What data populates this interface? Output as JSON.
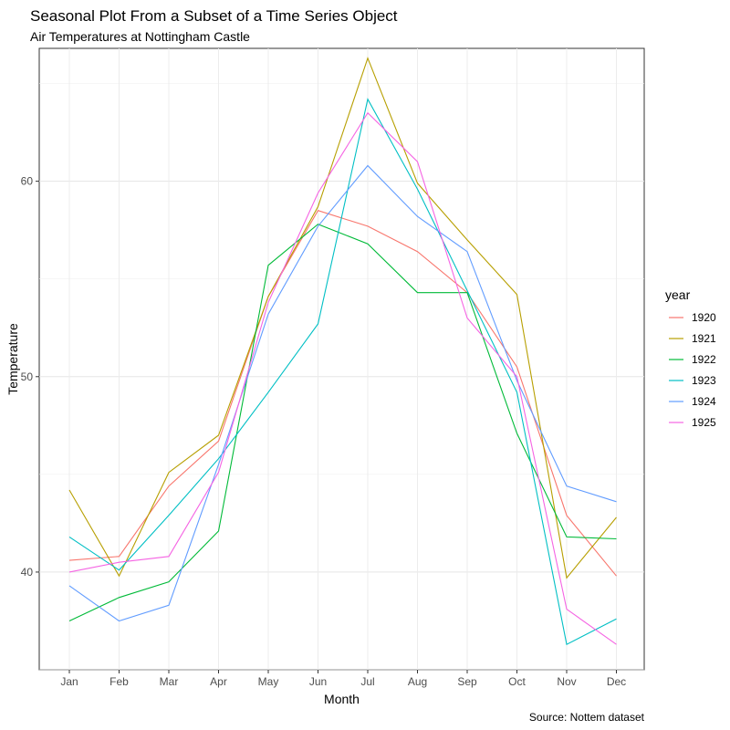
{
  "chart_data": {
    "type": "line",
    "title": "Seasonal Plot From a Subset of a Time Series Object",
    "subtitle": "Air Temperatures at Nottingham Castle",
    "xlabel": "Month",
    "ylabel": "Temperature",
    "caption": "Source: Nottem dataset",
    "categories": [
      "Jan",
      "Feb",
      "Mar",
      "Apr",
      "May",
      "Jun",
      "Jul",
      "Aug",
      "Sep",
      "Oct",
      "Nov",
      "Dec"
    ],
    "ylim": [
      35,
      66.8
    ],
    "yticks": [
      40,
      50,
      60
    ],
    "grid": true,
    "legend": {
      "title": "year",
      "position": "right"
    },
    "series": [
      {
        "name": "1920",
        "color": "#F8766D",
        "values": [
          40.6,
          40.8,
          44.4,
          46.7,
          54.1,
          58.5,
          57.7,
          56.4,
          54.3,
          50.5,
          42.9,
          39.8
        ]
      },
      {
        "name": "1921",
        "color": "#B79F00",
        "values": [
          44.2,
          39.8,
          45.1,
          47.0,
          54.1,
          58.7,
          66.3,
          59.9,
          57.0,
          54.2,
          39.7,
          42.8
        ]
      },
      {
        "name": "1922",
        "color": "#00BA38",
        "values": [
          37.5,
          38.7,
          39.5,
          42.1,
          55.7,
          57.8,
          56.8,
          54.3,
          54.3,
          47.1,
          41.8,
          41.7
        ]
      },
      {
        "name": "1923",
        "color": "#00BFC4",
        "values": [
          41.8,
          40.1,
          42.9,
          45.8,
          49.2,
          52.7,
          64.2,
          59.6,
          54.4,
          49.2,
          36.3,
          37.6
        ]
      },
      {
        "name": "1924",
        "color": "#619CFF",
        "values": [
          39.3,
          37.5,
          38.3,
          45.5,
          53.2,
          57.7,
          60.8,
          58.2,
          56.4,
          49.8,
          44.4,
          43.6
        ]
      },
      {
        "name": "1925",
        "color": "#F564E3",
        "values": [
          40.0,
          40.5,
          40.8,
          45.1,
          53.8,
          59.4,
          63.5,
          61.0,
          53.0,
          50.0,
          38.1,
          36.3
        ]
      }
    ]
  }
}
